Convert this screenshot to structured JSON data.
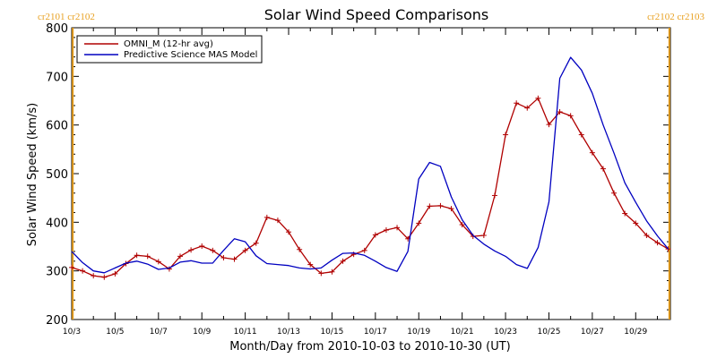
{
  "chart_data": {
    "type": "line",
    "title": "Solar Wind Speed Comparisons",
    "xlabel": "Month/Day from 2010-10-03 to 2010-10-30 (UT)",
    "ylabel": "Solar Wind Speed (km/s)",
    "xlim": [
      0,
      27.6
    ],
    "ylim": [
      200,
      800
    ],
    "x_ticks": [
      {
        "x": 0,
        "label": "10/3"
      },
      {
        "x": 2,
        "label": "10/5"
      },
      {
        "x": 4,
        "label": "10/7"
      },
      {
        "x": 6,
        "label": "10/9"
      },
      {
        "x": 8,
        "label": "10/11"
      },
      {
        "x": 10,
        "label": "10/13"
      },
      {
        "x": 12,
        "label": "10/15"
      },
      {
        "x": 14,
        "label": "10/17"
      },
      {
        "x": 16,
        "label": "10/19"
      },
      {
        "x": 18,
        "label": "10/21"
      },
      {
        "x": 20,
        "label": "10/23"
      },
      {
        "x": 22,
        "label": "10/25"
      },
      {
        "x": 24,
        "label": "10/27"
      },
      {
        "x": 26,
        "label": "10/29"
      }
    ],
    "y_ticks": [
      200,
      300,
      400,
      500,
      600,
      700,
      800
    ],
    "legend_position": "top-left",
    "carrington": {
      "left_label": "cr2101 cr2102",
      "right_label": "cr2102 cr2103",
      "left_x": 0.05,
      "right_x": 27.55,
      "color": "#E8A020"
    },
    "series": [
      {
        "name": "OMNI_M (12-hr avg)",
        "color": "#B00000",
        "markers": true,
        "x": [
          0,
          0.5,
          1,
          1.5,
          2,
          2.5,
          3,
          3.5,
          4,
          4.5,
          5,
          5.5,
          6,
          6.5,
          7,
          7.5,
          8,
          8.5,
          9,
          9.5,
          10,
          10.5,
          11,
          11.5,
          12,
          12.5,
          13,
          13.5,
          14,
          14.5,
          15,
          15.5,
          16,
          16.5,
          17,
          17.5,
          18,
          18.5,
          19,
          19.5,
          20,
          20.5,
          21,
          21.5,
          22,
          22.5,
          23,
          23.5,
          24,
          24.5,
          25,
          25.5,
          26,
          26.5,
          27,
          27.5
        ],
        "y": [
          307,
          300,
          290,
          287,
          294,
          315,
          332,
          330,
          319,
          304,
          330,
          343,
          351,
          342,
          327,
          324,
          342,
          357,
          410,
          404,
          380,
          344,
          313,
          295,
          298,
          320,
          334,
          342,
          374,
          384,
          389,
          366,
          398,
          433,
          434,
          428,
          395,
          371,
          373,
          455,
          580,
          645,
          635,
          655,
          601,
          627,
          619,
          580,
          543,
          510,
          460,
          418,
          398,
          373,
          358,
          345
        ]
      },
      {
        "name": "Predictive Science MAS Model",
        "color": "#0000C0",
        "markers": false,
        "x": [
          0,
          0.5,
          1,
          1.5,
          2,
          2.5,
          3,
          3.5,
          4,
          4.5,
          5,
          5.5,
          6,
          6.5,
          7,
          7.5,
          8,
          8.5,
          9,
          9.5,
          10,
          10.5,
          11,
          11.5,
          12,
          12.5,
          13,
          13.5,
          14,
          14.5,
          15,
          15.5,
          16,
          16.5,
          17,
          17.5,
          18,
          18.5,
          19,
          19.5,
          20,
          20.5,
          21,
          21.5,
          22,
          22.5,
          23,
          23.5,
          24,
          24.5,
          25,
          25.5,
          26,
          26.5,
          27,
          27.5
        ],
        "y": [
          340,
          317,
          300,
          296,
          306,
          316,
          320,
          314,
          303,
          306,
          318,
          321,
          316,
          316,
          342,
          366,
          360,
          331,
          315,
          313,
          311,
          306,
          304,
          306,
          322,
          336,
          337,
          332,
          320,
          307,
          299,
          340,
          489,
          523,
          515,
          452,
          405,
          373,
          355,
          341,
          330,
          313,
          305,
          348,
          442,
          696,
          739,
          713,
          665,
          600,
          542,
          481,
          441,
          403,
          372,
          345
        ]
      }
    ]
  }
}
